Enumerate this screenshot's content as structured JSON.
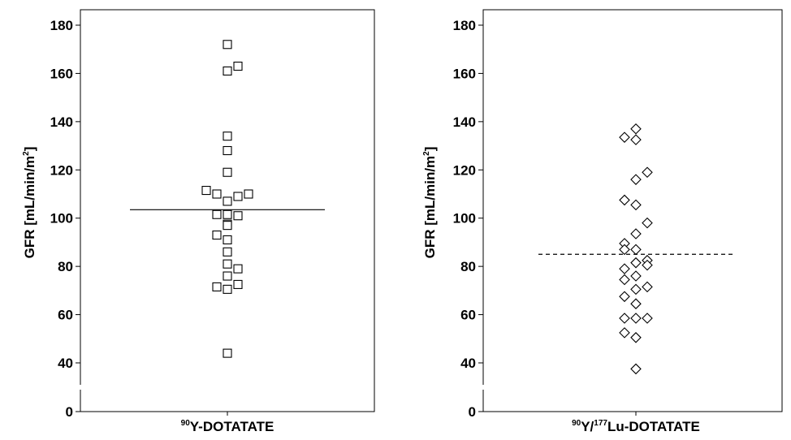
{
  "chart_data": [
    {
      "type": "scatter",
      "marker": "square",
      "ylabel_parts": {
        "main": "GFR [mL/min/m",
        "sup": "2",
        "end": "]"
      },
      "category_label": {
        "sup": "90",
        "text": "Y-DOTATATE"
      },
      "yticks": [
        "0",
        "40",
        "60",
        "80",
        "100",
        "120",
        "140",
        "160",
        "180"
      ],
      "ylim": [
        0,
        180
      ],
      "axis_break": "between 0 and 40",
      "grid": false,
      "summary_line": {
        "style": "solid",
        "y": 103.5
      },
      "points": [
        {
          "x": 0,
          "y": 172
        },
        {
          "x": 0,
          "y": 161
        },
        {
          "x": 1,
          "y": 163
        },
        {
          "x": 0,
          "y": 134
        },
        {
          "x": 0,
          "y": 128
        },
        {
          "x": 0,
          "y": 119
        },
        {
          "x": -2,
          "y": 111.5
        },
        {
          "x": -1,
          "y": 110
        },
        {
          "x": 0,
          "y": 107
        },
        {
          "x": 1,
          "y": 109
        },
        {
          "x": 2,
          "y": 110
        },
        {
          "x": -1,
          "y": 101.5
        },
        {
          "x": 0,
          "y": 101.5
        },
        {
          "x": 1,
          "y": 101
        },
        {
          "x": 0,
          "y": 97.5
        },
        {
          "x": 0,
          "y": 97
        },
        {
          "x": -1,
          "y": 93
        },
        {
          "x": 0,
          "y": 91
        },
        {
          "x": 0,
          "y": 86
        },
        {
          "x": 0,
          "y": 81
        },
        {
          "x": 1,
          "y": 79
        },
        {
          "x": 0,
          "y": 76
        },
        {
          "x": -1,
          "y": 71.5
        },
        {
          "x": 0,
          "y": 70.5
        },
        {
          "x": 1,
          "y": 72.5
        },
        {
          "x": 0,
          "y": 44
        }
      ]
    },
    {
      "type": "scatter",
      "marker": "diamond",
      "ylabel_parts": {
        "main": "GFR [mL/min/m",
        "sup": "2",
        "end": "]"
      },
      "category_label": {
        "sup1": "90",
        "mid": "Y/",
        "sup2": "177",
        "text": "Lu-DOTATATE"
      },
      "yticks": [
        "0",
        "40",
        "60",
        "80",
        "100",
        "120",
        "140",
        "160",
        "180"
      ],
      "ylim": [
        0,
        180
      ],
      "axis_break": "between 0 and 40",
      "grid": false,
      "summary_line": {
        "style": "dashed",
        "y": 85
      },
      "points": [
        {
          "x": 0,
          "y": 137
        },
        {
          "x": -1,
          "y": 133.5
        },
        {
          "x": 0,
          "y": 132.5
        },
        {
          "x": 1,
          "y": 119
        },
        {
          "x": 0,
          "y": 116
        },
        {
          "x": -1,
          "y": 107.5
        },
        {
          "x": 0,
          "y": 105.5
        },
        {
          "x": 1,
          "y": 98
        },
        {
          "x": 0,
          "y": 93.5
        },
        {
          "x": -1,
          "y": 89.5
        },
        {
          "x": -1,
          "y": 87
        },
        {
          "x": 0,
          "y": 87
        },
        {
          "x": 1,
          "y": 82.5
        },
        {
          "x": 0,
          "y": 81.5
        },
        {
          "x": 1,
          "y": 80.5
        },
        {
          "x": -1,
          "y": 79
        },
        {
          "x": 0,
          "y": 76
        },
        {
          "x": -1,
          "y": 74.5
        },
        {
          "x": 1,
          "y": 71.5
        },
        {
          "x": 0,
          "y": 70.5
        },
        {
          "x": -1,
          "y": 67.5
        },
        {
          "x": 0,
          "y": 64.5
        },
        {
          "x": -1,
          "y": 58.5
        },
        {
          "x": 0,
          "y": 58.5
        },
        {
          "x": 1,
          "y": 58.5
        },
        {
          "x": -1,
          "y": 52.5
        },
        {
          "x": 0,
          "y": 50.5
        },
        {
          "x": 0,
          "y": 37.5
        }
      ]
    }
  ]
}
